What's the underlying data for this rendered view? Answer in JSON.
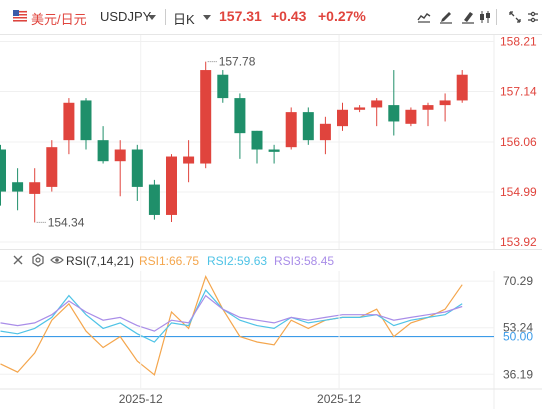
{
  "header": {
    "pair_name": "美元/日元",
    "pair_code": "USDJPY",
    "period": "日K",
    "price": "157.31",
    "change": "+0.43",
    "change_pct": "+0.27%",
    "up_color": "#e0443d",
    "down_color": "#1f8f6a",
    "tools": [
      "indicator-icon",
      "draw-icon",
      "erase-icon",
      "settings-icon",
      "fullscreen-icon"
    ]
  },
  "rsi_panel": {
    "title": "RSI(7,14,21)",
    "rsi1_label": "RSI1:66.75",
    "rsi2_label": "RSI2:59.63",
    "rsi3_label": "RSI3:58.45",
    "colors": {
      "rsi1": "#f4a64d",
      "rsi2": "#4fc3e6",
      "rsi3": "#a98de8",
      "level": "#3c9be8"
    }
  },
  "chart_data": [
    {
      "type": "candlestick",
      "ylim": [
        153.75,
        158.35
      ],
      "y_ticks": [
        "158.21",
        "157.14",
        "156.06",
        "154.99",
        "153.92"
      ],
      "y_tick_values": [
        158.21,
        157.14,
        156.06,
        154.99,
        153.92
      ],
      "x_ticks": [
        "2025-12",
        "2025-12"
      ],
      "x_tick_index": [
        8.2,
        19.8
      ],
      "annotations": [
        {
          "text": "157.78",
          "index": 12,
          "value": 157.78
        },
        {
          "text": "154.34",
          "index": 2,
          "value": 154.34
        }
      ],
      "candles": [
        {
          "open": 155.9,
          "high": 156.0,
          "low": 154.7,
          "close": 155.0
        },
        {
          "open": 155.2,
          "high": 155.5,
          "low": 154.6,
          "close": 155.0
        },
        {
          "open": 154.95,
          "high": 155.5,
          "low": 154.34,
          "close": 155.2
        },
        {
          "open": 155.1,
          "high": 156.1,
          "low": 155.0,
          "close": 155.95
        },
        {
          "open": 156.1,
          "high": 157.0,
          "low": 155.8,
          "close": 156.9
        },
        {
          "open": 156.95,
          "high": 157.0,
          "low": 155.9,
          "close": 156.1
        },
        {
          "open": 156.1,
          "high": 156.4,
          "low": 155.6,
          "close": 155.65
        },
        {
          "open": 155.65,
          "high": 156.1,
          "low": 154.9,
          "close": 155.9
        },
        {
          "open": 155.9,
          "high": 156.0,
          "low": 154.8,
          "close": 155.1
        },
        {
          "open": 155.15,
          "high": 155.25,
          "low": 154.4,
          "close": 154.5
        },
        {
          "open": 154.5,
          "high": 155.8,
          "low": 154.35,
          "close": 155.75
        },
        {
          "open": 155.6,
          "high": 156.1,
          "low": 155.2,
          "close": 155.75
        },
        {
          "open": 155.6,
          "high": 157.78,
          "low": 155.5,
          "close": 157.6
        },
        {
          "open": 157.5,
          "high": 157.6,
          "low": 156.9,
          "close": 157.0
        },
        {
          "open": 157.0,
          "high": 157.1,
          "low": 155.7,
          "close": 156.25
        },
        {
          "open": 156.3,
          "high": 156.3,
          "low": 155.6,
          "close": 155.9
        },
        {
          "open": 155.9,
          "high": 156.0,
          "low": 155.6,
          "close": 155.85
        },
        {
          "open": 155.95,
          "high": 156.8,
          "low": 155.9,
          "close": 156.7
        },
        {
          "open": 156.7,
          "high": 156.8,
          "low": 156.0,
          "close": 156.1
        },
        {
          "open": 156.1,
          "high": 156.6,
          "low": 155.8,
          "close": 156.45
        },
        {
          "open": 156.4,
          "high": 156.9,
          "low": 156.3,
          "close": 156.75
        },
        {
          "open": 156.75,
          "high": 156.85,
          "low": 156.7,
          "close": 156.8
        },
        {
          "open": 156.8,
          "high": 157.0,
          "low": 156.4,
          "close": 156.95
        },
        {
          "open": 156.85,
          "high": 157.6,
          "low": 156.2,
          "close": 156.5
        },
        {
          "open": 156.45,
          "high": 156.8,
          "low": 156.4,
          "close": 156.75
        },
        {
          "open": 156.75,
          "high": 156.9,
          "low": 156.4,
          "close": 156.85
        },
        {
          "open": 156.85,
          "high": 157.1,
          "low": 156.5,
          "close": 156.95
        },
        {
          "open": 156.95,
          "high": 157.6,
          "low": 156.9,
          "close": 157.5
        }
      ]
    },
    {
      "type": "line",
      "ylim": [
        33,
        74
      ],
      "y_ticks": [
        "70.29",
        "53.24",
        "50.00",
        "36.19"
      ],
      "y_tick_values": [
        70.29,
        53.24,
        50.0,
        36.19
      ],
      "level_value": 50.0,
      "series": [
        {
          "name": "RSI1",
          "color": "#f4a64d",
          "values": [
            40,
            37,
            44,
            56,
            62,
            52,
            46,
            50,
            41,
            36,
            59,
            53,
            72,
            60,
            50,
            48,
            47,
            56,
            53,
            56,
            57,
            57,
            60,
            50,
            55,
            57,
            60,
            69
          ]
        },
        {
          "name": "RSI2",
          "color": "#4fc3e6",
          "values": [
            52,
            51,
            53,
            57,
            65,
            58,
            53,
            55,
            51,
            48,
            55,
            54,
            67,
            60,
            56,
            54,
            53,
            57,
            55,
            56,
            57,
            57,
            58,
            54,
            56,
            57,
            58,
            62
          ]
        },
        {
          "name": "RSI3",
          "color": "#a98de8",
          "values": [
            55,
            54,
            55,
            58,
            63,
            59,
            56,
            57,
            54,
            52,
            56,
            55,
            65,
            60,
            57,
            56,
            55,
            57,
            56,
            57,
            58,
            58,
            58,
            56,
            57,
            58,
            59,
            61
          ]
        }
      ]
    }
  ]
}
